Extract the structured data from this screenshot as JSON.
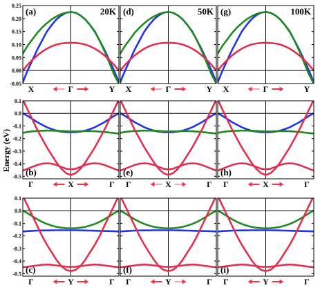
{
  "chart_data": {
    "type": "line",
    "ylabel": "Energy (eV)",
    "series_colors": {
      "band_1": "#2233e8",
      "band_2": "#1f8a1f",
      "band_3": "#e0304e"
    },
    "arrow_color": "#e8354a",
    "arrow_light_color": "#f4a6ae",
    "rows": [
      {
        "id": "row1",
        "ylim": [
          -0.05,
          0.25
        ],
        "yticks": [
          "0.25",
          "0.20",
          "0.15",
          "0.10",
          "0.05",
          "0.00",
          "-0.05"
        ],
        "ytick_values": [
          0.25,
          0.2,
          0.15,
          0.1,
          0.05,
          0.0,
          -0.05
        ],
        "xlim": [
          -1,
          1
        ],
        "xticks": [
          "X",
          "Γ",
          "Y"
        ],
        "x": [
          -1,
          -0.9,
          -0.8,
          -0.7,
          -0.6,
          -0.5,
          -0.4,
          -0.3,
          -0.2,
          -0.1,
          0,
          0.1,
          0.2,
          0.3,
          0.4,
          0.5,
          0.6,
          0.7,
          0.8,
          0.9,
          1
        ],
        "series": [
          {
            "key": "band_1",
            "values": [
              -0.045,
              0.0,
              0.04,
              0.08,
              0.115,
              0.15,
              0.175,
              0.197,
              0.212,
              0.222,
              0.225,
              0.222,
              0.212,
              0.197,
              0.175,
              0.15,
              0.115,
              0.08,
              0.04,
              0.0,
              -0.045
            ]
          },
          {
            "key": "band_2",
            "values": [
              0.065,
              0.095,
              0.12,
              0.145,
              0.165,
              0.182,
              0.197,
              0.208,
              0.217,
              0.223,
              0.225,
              0.222,
              0.212,
              0.196,
              0.175,
              0.148,
              0.115,
              0.075,
              0.03,
              -0.015,
              -0.05
            ]
          },
          {
            "key": "band_3",
            "values": [
              0.0,
              0.022,
              0.041,
              0.058,
              0.072,
              0.084,
              0.093,
              0.1,
              0.104,
              0.106,
              0.107,
              0.106,
              0.104,
              0.1,
              0.093,
              0.084,
              0.072,
              0.058,
              0.041,
              0.022,
              0.0
            ]
          }
        ]
      },
      {
        "id": "row2",
        "ylim": [
          -0.52,
          0.1
        ],
        "yticks": [
          "0.1",
          "0.0",
          "-0.1",
          "-0.2",
          "-0.3",
          "-0.4",
          "-0.5"
        ],
        "ytick_values": [
          0.1,
          0.0,
          -0.1,
          -0.2,
          -0.3,
          -0.4,
          -0.5
        ],
        "xlim": [
          -1,
          1
        ],
        "xticks": [
          "Γ",
          "X",
          "Γ"
        ],
        "x": [
          -1,
          -0.9,
          -0.8,
          -0.7,
          -0.6,
          -0.5,
          -0.4,
          -0.3,
          -0.2,
          -0.1,
          0,
          0.1,
          0.2,
          0.3,
          0.4,
          0.5,
          0.6,
          0.7,
          0.8,
          0.9,
          1
        ],
        "series": [
          {
            "key": "band_1",
            "values": [
              0.0,
              -0.02,
              -0.045,
              -0.07,
              -0.09,
              -0.11,
              -0.125,
              -0.137,
              -0.145,
              -0.149,
              -0.15,
              -0.149,
              -0.145,
              -0.137,
              -0.125,
              -0.11,
              -0.09,
              -0.07,
              -0.045,
              -0.02,
              0.0
            ]
          },
          {
            "key": "band_2",
            "values": [
              -0.155,
              -0.148,
              -0.143,
              -0.14,
              -0.138,
              -0.137,
              -0.137,
              -0.138,
              -0.14,
              -0.142,
              -0.143,
              -0.143,
              -0.142,
              -0.141,
              -0.141,
              -0.142,
              -0.145,
              -0.148,
              -0.152,
              -0.156,
              -0.16
            ]
          },
          {
            "key": "band_3a",
            "values": [
              0.11,
              0.03,
              -0.05,
              -0.13,
              -0.2,
              -0.27,
              -0.33,
              -0.39,
              -0.44,
              -0.475,
              -0.49,
              -0.475,
              -0.44,
              -0.39,
              -0.33,
              -0.27,
              -0.2,
              -0.13,
              -0.05,
              0.03,
              0.11
            ]
          },
          {
            "key": "band_3b",
            "values": [
              -0.455,
              -0.44,
              -0.425,
              -0.41,
              -0.4,
              -0.397,
              -0.4,
              -0.41,
              -0.425,
              -0.44,
              -0.445,
              -0.44,
              -0.425,
              -0.41,
              -0.4,
              -0.397,
              -0.4,
              -0.41,
              -0.425,
              -0.44,
              -0.455
            ]
          }
        ]
      },
      {
        "id": "row3",
        "ylim": [
          -0.52,
          0.1
        ],
        "yticks": [
          "0.1",
          "0.0",
          "-0.1",
          "-0.2",
          "-0.3",
          "-0.4",
          "-0.5"
        ],
        "ytick_values": [
          0.1,
          0.0,
          -0.1,
          -0.2,
          -0.3,
          -0.4,
          -0.5
        ],
        "xlim": [
          -1,
          1
        ],
        "xticks": [
          "Γ",
          "Y",
          "Γ"
        ],
        "x": [
          -1,
          -0.9,
          -0.8,
          -0.7,
          -0.6,
          -0.5,
          -0.4,
          -0.3,
          -0.2,
          -0.1,
          0,
          0.1,
          0.2,
          0.3,
          0.4,
          0.5,
          0.6,
          0.7,
          0.8,
          0.9,
          1
        ],
        "series": [
          {
            "key": "band_1",
            "values": [
              -0.165,
              -0.162,
              -0.16,
              -0.158,
              -0.157,
              -0.156,
              -0.156,
              -0.155,
              -0.155,
              -0.155,
              -0.155,
              -0.155,
              -0.156,
              -0.157,
              -0.158,
              -0.159,
              -0.16,
              -0.161,
              -0.162,
              -0.163,
              -0.165
            ]
          },
          {
            "key": "band_2",
            "values": [
              0.0,
              -0.02,
              -0.045,
              -0.068,
              -0.088,
              -0.105,
              -0.118,
              -0.128,
              -0.135,
              -0.139,
              -0.14,
              -0.139,
              -0.135,
              -0.128,
              -0.118,
              -0.105,
              -0.088,
              -0.068,
              -0.045,
              -0.02,
              0.0
            ]
          },
          {
            "key": "band_3a",
            "values": [
              0.12,
              0.04,
              -0.04,
              -0.12,
              -0.2,
              -0.27,
              -0.33,
              -0.39,
              -0.44,
              -0.47,
              -0.48,
              -0.47,
              -0.44,
              -0.39,
              -0.33,
              -0.27,
              -0.2,
              -0.12,
              -0.04,
              0.04,
              0.12
            ]
          },
          {
            "key": "band_3b",
            "values": [
              -0.45,
              -0.445,
              -0.44,
              -0.435,
              -0.43,
              -0.428,
              -0.43,
              -0.435,
              -0.44,
              -0.445,
              -0.447,
              -0.445,
              -0.44,
              -0.435,
              -0.43,
              -0.428,
              -0.43,
              -0.435,
              -0.44,
              -0.445,
              -0.45
            ]
          }
        ]
      }
    ],
    "panels": [
      {
        "id": "a",
        "label": "(a)",
        "row": 0,
        "col": 0,
        "temp": "20K"
      },
      {
        "id": "d",
        "label": "(d)",
        "row": 0,
        "col": 1,
        "temp": "50K"
      },
      {
        "id": "g",
        "label": "(g)",
        "row": 0,
        "col": 2,
        "temp": "100K"
      },
      {
        "id": "b",
        "label": "(b)",
        "row": 1,
        "col": 0,
        "temp": ""
      },
      {
        "id": "e",
        "label": "(e)",
        "row": 1,
        "col": 1,
        "temp": ""
      },
      {
        "id": "h",
        "label": "(h)",
        "row": 1,
        "col": 2,
        "temp": ""
      },
      {
        "id": "c",
        "label": "(c)",
        "row": 2,
        "col": 0,
        "temp": ""
      },
      {
        "id": "f",
        "label": "(f)",
        "row": 2,
        "col": 1,
        "temp": ""
      },
      {
        "id": "i",
        "label": "(i)",
        "row": 2,
        "col": 2,
        "temp": ""
      }
    ]
  }
}
